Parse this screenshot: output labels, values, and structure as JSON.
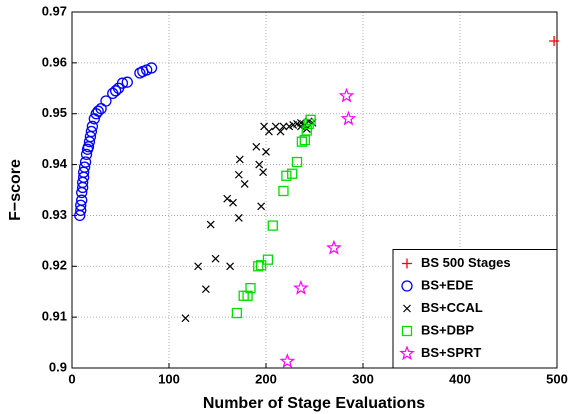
{
  "chart_data": {
    "type": "scatter",
    "x_label": "Number of Stage Evaluations",
    "y_label": "F−score",
    "xlim": [
      0,
      500
    ],
    "xticks": [
      0,
      100,
      200,
      300,
      400,
      500
    ],
    "ylim": [
      0.9,
      0.97
    ],
    "yticks": [
      0.9,
      0.91,
      0.92,
      0.93,
      0.94,
      0.95,
      0.96,
      0.97
    ],
    "grid": true,
    "legend": "lower right",
    "series": [
      {
        "name": "BS 500 Stages",
        "color": "#ff0000",
        "marker": "+",
        "x": [
          497
        ],
        "values": [
          0.9643
        ]
      },
      {
        "name": "BS+EDE",
        "color": "#0000ff",
        "marker": "o",
        "x": [
          8,
          9,
          9,
          10,
          10,
          11,
          11,
          12,
          12,
          13,
          14,
          15,
          16,
          17,
          18,
          19,
          20,
          21,
          23,
          25,
          27,
          30,
          35,
          42,
          45,
          48,
          52,
          57,
          70,
          73,
          77,
          82
        ],
        "values": [
          0.93,
          0.931,
          0.932,
          0.933,
          0.9345,
          0.9355,
          0.9365,
          0.9375,
          0.9385,
          0.9395,
          0.9405,
          0.942,
          0.943,
          0.9435,
          0.9445,
          0.9455,
          0.9465,
          0.9475,
          0.949,
          0.95,
          0.9505,
          0.951,
          0.9525,
          0.954,
          0.9545,
          0.955,
          0.956,
          0.9562,
          0.958,
          0.9583,
          0.9586,
          0.959
        ]
      },
      {
        "name": "BS+CCAL",
        "color": "#000000",
        "marker": "x",
        "x": [
          117,
          138,
          130,
          148,
          163,
          143,
          172,
          166,
          160,
          178,
          172,
          173,
          195,
          197,
          193,
          190,
          200,
          198,
          203,
          210,
          215,
          218,
          224,
          228,
          232,
          236,
          240,
          244,
          248,
          236,
          242
        ],
        "values": [
          0.9098,
          0.9155,
          0.92,
          0.9215,
          0.92,
          0.9282,
          0.9295,
          0.9325,
          0.9333,
          0.9362,
          0.938,
          0.941,
          0.9318,
          0.9385,
          0.94,
          0.9435,
          0.9425,
          0.9475,
          0.9465,
          0.9475,
          0.9465,
          0.9475,
          0.9475,
          0.9478,
          0.948,
          0.9482,
          0.9478,
          0.9485,
          0.9482,
          0.9475,
          0.947
        ]
      },
      {
        "name": "BS+DBP",
        "color": "#00dd00",
        "marker": "s",
        "x": [
          170,
          177,
          181,
          184,
          192,
          195,
          202,
          207,
          218,
          221,
          227,
          232,
          237,
          240,
          242,
          244,
          246
        ],
        "values": [
          0.9108,
          0.9142,
          0.9142,
          0.9157,
          0.92,
          0.9202,
          0.9213,
          0.928,
          0.9348,
          0.9378,
          0.9382,
          0.9405,
          0.9445,
          0.9448,
          0.9467,
          0.948,
          0.9488
        ]
      },
      {
        "name": "BS+SPRT",
        "color": "#ff00ff",
        "marker": "*",
        "x": [
          222,
          236,
          270,
          283,
          285
        ],
        "values": [
          0.9013,
          0.9157,
          0.9236,
          0.9535,
          0.949
        ]
      }
    ]
  }
}
